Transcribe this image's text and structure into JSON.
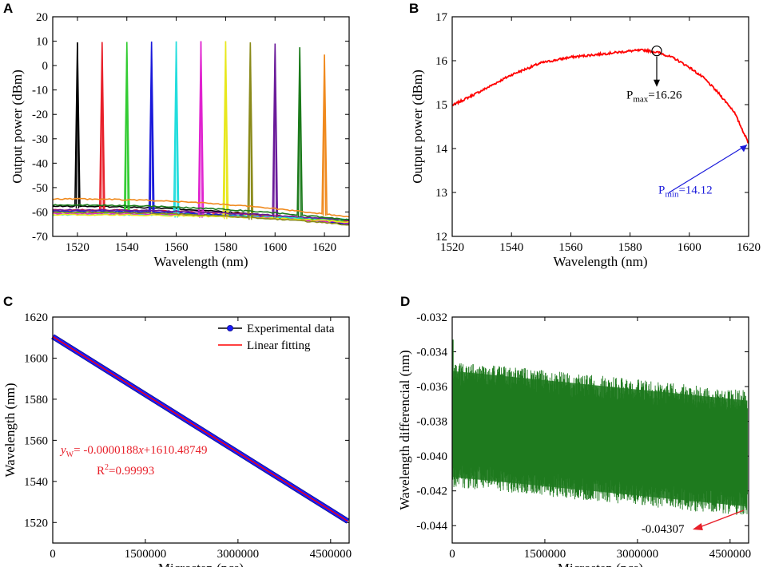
{
  "chart_data": [
    {
      "panel": "A",
      "type": "line",
      "xlabel": "Wavelength (nm)",
      "ylabel": "Output power (dBm)",
      "xlim": [
        1510,
        1630
      ],
      "ylim": [
        -70,
        20
      ],
      "xticks": [
        1520,
        1540,
        1560,
        1580,
        1600,
        1620
      ],
      "yticks": [
        -70,
        -60,
        -50,
        -40,
        -30,
        -20,
        -10,
        0,
        10,
        20
      ],
      "series": [
        {
          "name": "1520 nm",
          "color": "#000000",
          "peak_wavelength": 1520,
          "peak_power": 9.5,
          "floor_start": -57.5,
          "floor_end": -65.5
        },
        {
          "name": "1530 nm",
          "color": "#e8202a",
          "peak_wavelength": 1530,
          "peak_power": 9.6,
          "floor_start": -59,
          "floor_end": -64
        },
        {
          "name": "1540 nm",
          "color": "#33cc33",
          "peak_wavelength": 1540,
          "peak_power": 9.7,
          "floor_start": -60,
          "floor_end": -64
        },
        {
          "name": "1550 nm",
          "color": "#1a1adb",
          "peak_wavelength": 1550,
          "peak_power": 9.8,
          "floor_start": -59.5,
          "floor_end": -65
        },
        {
          "name": "1560 nm",
          "color": "#22dddd",
          "peak_wavelength": 1560,
          "peak_power": 9.9,
          "floor_start": -61,
          "floor_end": -63
        },
        {
          "name": "1570 nm",
          "color": "#e022cf",
          "peak_wavelength": 1570,
          "peak_power": 10.0,
          "floor_start": -60.5,
          "floor_end": -64.5
        },
        {
          "name": "1580 nm",
          "color": "#e8e81e",
          "peak_wavelength": 1580,
          "peak_power": 10.0,
          "floor_start": -61,
          "floor_end": -64
        },
        {
          "name": "1590 nm",
          "color": "#8a8a1a",
          "peak_wavelength": 1590,
          "peak_power": 9.5,
          "floor_start": -60,
          "floor_end": -65.5
        },
        {
          "name": "1600 nm",
          "color": "#6a1a9a",
          "peak_wavelength": 1600,
          "peak_power": 9.0,
          "floor_start": -59,
          "floor_end": -63.5
        },
        {
          "name": "1610 nm",
          "color": "#1a7a1a",
          "peak_wavelength": 1610,
          "peak_power": 7.5,
          "floor_start": -57,
          "floor_end": -63.5
        },
        {
          "name": "1620 nm",
          "color": "#f08a1e",
          "peak_wavelength": 1620,
          "peak_power": 4.5,
          "floor_start": -54.5,
          "floor_end": -62.5
        }
      ]
    },
    {
      "panel": "B",
      "type": "line",
      "xlabel": "Wavelength (nm)",
      "ylabel": "Output power (dBm)",
      "xlim": [
        1520,
        1620
      ],
      "ylim": [
        12,
        17
      ],
      "xticks": [
        1520,
        1540,
        1560,
        1580,
        1600,
        1620
      ],
      "yticks": [
        12,
        13,
        14,
        15,
        16,
        17
      ],
      "series": [
        {
          "name": "Output power",
          "color": "#ff0000",
          "x": [
            1520,
            1530,
            1540,
            1550,
            1560,
            1570,
            1580,
            1585,
            1590,
            1595,
            1600,
            1605,
            1610,
            1615,
            1620
          ],
          "y": [
            14.98,
            15.32,
            15.68,
            15.95,
            16.08,
            16.15,
            16.22,
            16.24,
            16.18,
            16.05,
            15.85,
            15.6,
            15.25,
            14.85,
            14.12
          ]
        }
      ],
      "annotations": [
        {
          "parts": [
            {
              "text": "P",
              "sub": false
            },
            {
              "text": "max",
              "sub": true
            },
            {
              "text": "=16.26",
              "sub": false
            }
          ],
          "x": 1589,
          "y": 16.26,
          "color": "#000000"
        },
        {
          "parts": [
            {
              "text": "P",
              "sub": false
            },
            {
              "text": "min",
              "sub": true
            },
            {
              "text": "=14.12",
              "sub": false
            }
          ],
          "x": 1620,
          "y": 14.12,
          "color": "#1a1adb"
        }
      ]
    },
    {
      "panel": "C",
      "type": "line",
      "xlabel": "Microstep (pcs)",
      "ylabel": "Wavelength (nm)",
      "xlim": [
        0,
        4800000
      ],
      "ylim": [
        1510,
        1620
      ],
      "xticks": [
        0,
        1500000,
        3000000,
        4500000
      ],
      "yticks": [
        1520,
        1540,
        1560,
        1580,
        1600,
        1620
      ],
      "series": [
        {
          "name": "Experimental data",
          "color": "#1a1aff",
          "x": [
            0,
            4780000
          ],
          "y": [
            1610.49,
            1520.62
          ]
        },
        {
          "name": "Linear fitting",
          "color": "#ff0000",
          "x": [
            0,
            4780000
          ],
          "y": [
            1610.48749,
            1520.62
          ]
        }
      ],
      "equation": {
        "y": "y",
        "sub": "W",
        "rest": "= -0.0000188",
        "xvar": "x",
        "tail": "+1610.48749"
      },
      "r_squared": {
        "label": "R",
        "sup": "2",
        "rest": "=0.99993"
      }
    },
    {
      "panel": "D",
      "type": "line",
      "xlabel": "Microstep (pcs)",
      "ylabel": "Wavelength differencial (nm)",
      "xlim": [
        0,
        4800000
      ],
      "ylim": [
        -0.045,
        -0.032
      ],
      "xticks": [
        0,
        1500000,
        3000000,
        4500000
      ],
      "yticks": [
        -0.044,
        -0.042,
        -0.04,
        -0.038,
        -0.036,
        -0.034,
        -0.032
      ],
      "series": [
        {
          "name": "Wavelength differencial",
          "color": "#1f7a1f",
          "x_end": 4780000,
          "upper_start": -0.0355,
          "upper_end": -0.0372,
          "lower_start": -0.0408,
          "lower_end": -0.0425,
          "spike_max": -0.0333
        }
      ],
      "annotations": [
        {
          "text": "-0.04307",
          "x": 4720000,
          "y": -0.04307,
          "color": "#e8202a"
        }
      ]
    }
  ],
  "panels": {
    "A": {
      "letter": "A"
    },
    "B": {
      "letter": "B"
    },
    "C": {
      "letter": "C"
    },
    "D": {
      "letter": "D"
    }
  }
}
